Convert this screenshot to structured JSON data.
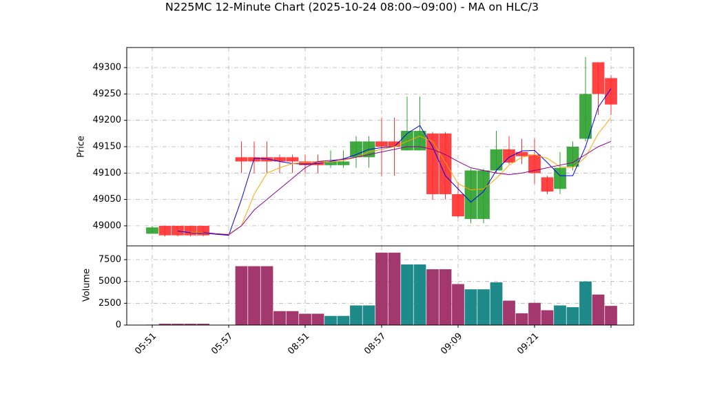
{
  "chart_data": {
    "type": "candlestick",
    "title": "N225MC 12-Minute Chart (2025-10-24 08:00~09:00) - MA on HLC/3",
    "ylabel": "Price",
    "volume_ylabel": "Volume",
    "categories": [
      "05:51",
      null,
      null,
      null,
      null,
      null,
      "05:57",
      null,
      null,
      null,
      null,
      null,
      "08:51",
      null,
      null,
      null,
      null,
      null,
      "08:57",
      null,
      null,
      null,
      null,
      null,
      "09:09",
      null,
      null,
      null,
      null,
      null,
      "09:21",
      null,
      null,
      null,
      null,
      null,
      null
    ],
    "open": [
      48985,
      49000,
      49000,
      49000,
      49000,
      null,
      null,
      49130,
      49130,
      49130,
      49130,
      49130,
      49122,
      49122,
      49115,
      49115,
      49130,
      49130,
      49160,
      49160,
      49143,
      49143,
      49175,
      49175,
      49060,
      49013,
      49013,
      49105,
      49145,
      49140,
      49135,
      49092,
      49070,
      49112,
      49165,
      49310,
      49280
    ],
    "high": [
      49000,
      49000,
      49000,
      49000,
      49000,
      null,
      null,
      49160,
      49160,
      49160,
      49135,
      49135,
      49135,
      49135,
      49143,
      49143,
      49170,
      49170,
      49205,
      49205,
      49245,
      49245,
      49178,
      49178,
      49082,
      49108,
      49108,
      49180,
      49170,
      49165,
      49165,
      49095,
      49140,
      49160,
      49320,
      49310,
      49285
    ],
    "low": [
      48985,
      48980,
      48980,
      48980,
      48980,
      null,
      null,
      49100,
      49100,
      49100,
      49100,
      49100,
      49100,
      49100,
      49110,
      49110,
      49110,
      49110,
      49095,
      49095,
      49143,
      49143,
      49050,
      49050,
      49015,
      49005,
      49005,
      49100,
      49117,
      49117,
      49080,
      49060,
      49060,
      49105,
      49160,
      49210,
      49210
    ],
    "close": [
      48997,
      48982,
      48982,
      48982,
      48982,
      null,
      null,
      49122,
      49122,
      49122,
      49122,
      49122,
      49115,
      49115,
      49122,
      49122,
      49160,
      49160,
      49150,
      49150,
      49180,
      49180,
      49060,
      49060,
      49018,
      49105,
      49105,
      49145,
      49120,
      49132,
      49100,
      49065,
      49110,
      49150,
      49250,
      49250,
      49230
    ],
    "volume": [
      50,
      150,
      150,
      150,
      150,
      null,
      null,
      6750,
      6750,
      6750,
      1600,
      1600,
      1300,
      1300,
      1050,
      1050,
      2250,
      2250,
      8300,
      8300,
      6950,
      6950,
      6400,
      6400,
      4700,
      4100,
      4100,
      4900,
      2800,
      1350,
      2550,
      1700,
      2250,
      2050,
      5000,
      3500,
      2200
    ],
    "ma": [
      {
        "color": "#0000ee",
        "values": [
          null,
          null,
          48990,
          48987,
          48986,
          48984,
          48982,
          49050,
          49128,
          49127,
          49122,
          49118,
          49117,
          49118,
          49122,
          49127,
          49135,
          49145,
          49148,
          49150,
          49175,
          49190,
          49150,
          49095,
          49070,
          49045,
          49065,
          49105,
          49130,
          49142,
          49143,
          49120,
          49095,
          49095,
          49150,
          49225,
          49260
        ]
      },
      {
        "color": "#ffa500",
        "values": [
          null,
          null,
          null,
          48988,
          48987,
          48985,
          48984,
          49000,
          49060,
          49100,
          49110,
          49118,
          49120,
          49120,
          49121,
          49124,
          49130,
          49140,
          49145,
          49150,
          49160,
          49170,
          49160,
          49120,
          49080,
          49068,
          49070,
          49090,
          49115,
          49130,
          49135,
          49128,
          49112,
          49110,
          49130,
          49175,
          49205
        ]
      },
      {
        "color": "#8b008b",
        "values": [
          null,
          null,
          null,
          null,
          48988,
          48985,
          48983,
          49000,
          49030,
          49050,
          49070,
          49090,
          49110,
          49122,
          49124,
          49126,
          49130,
          49135,
          49140,
          49145,
          49150,
          49150,
          49145,
          49135,
          49122,
          49110,
          49105,
          49100,
          49097,
          49100,
          49105,
          49110,
          49115,
          49120,
          49135,
          49150,
          49160
        ]
      }
    ],
    "up_color": "#2ca02c",
    "down_color": "#ff2d2d",
    "volume_up_color": "#1f8a8a",
    "volume_down_color": "#a3386e",
    "ylim": [
      48962,
      49338
    ],
    "yticks": [
      49000,
      49050,
      49100,
      49150,
      49200,
      49250,
      49300
    ],
    "volume_ylim": [
      0,
      9080
    ],
    "volume_yticks": [
      0,
      2500,
      5000,
      7500
    ],
    "grid": true
  }
}
